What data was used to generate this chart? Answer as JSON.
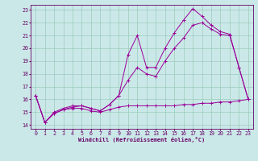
{
  "xlabel": "Windchill (Refroidissement éolien,°C)",
  "bg_color": "#cbe8e8",
  "line_color": "#990099",
  "grid_color": "#99ccbb",
  "xlim_min": -0.5,
  "xlim_max": 23.5,
  "ylim_min": 13.7,
  "ylim_max": 23.4,
  "xticks": [
    0,
    1,
    2,
    3,
    4,
    5,
    6,
    7,
    8,
    9,
    10,
    11,
    12,
    13,
    14,
    15,
    16,
    17,
    18,
    19,
    20,
    21,
    22,
    23
  ],
  "yticks": [
    14,
    15,
    16,
    17,
    18,
    19,
    20,
    21,
    22,
    23
  ],
  "line1_x": [
    0,
    1,
    2,
    3,
    4,
    5,
    6,
    7,
    8,
    9,
    10,
    11,
    12,
    13,
    14,
    15,
    16,
    17,
    18,
    19,
    20,
    21,
    22,
    23
  ],
  "line1_y": [
    16.3,
    14.2,
    14.9,
    15.2,
    15.3,
    15.3,
    15.1,
    15.0,
    15.2,
    15.4,
    15.5,
    15.5,
    15.5,
    15.5,
    15.5,
    15.5,
    15.6,
    15.6,
    15.7,
    15.7,
    15.8,
    15.8,
    15.9,
    16.0
  ],
  "line2_x": [
    0,
    1,
    2,
    3,
    4,
    5,
    6,
    7,
    8,
    9,
    10,
    11,
    12,
    13,
    14,
    15,
    16,
    17,
    18,
    19,
    20,
    21,
    22,
    23
  ],
  "line2_y": [
    16.3,
    14.2,
    15.0,
    15.3,
    15.5,
    15.5,
    15.3,
    15.1,
    15.6,
    16.3,
    17.5,
    18.5,
    18.0,
    17.8,
    19.0,
    20.0,
    20.8,
    21.8,
    22.0,
    21.5,
    21.1,
    21.0,
    18.5,
    16.0
  ],
  "line3_x": [
    0,
    1,
    2,
    3,
    4,
    5,
    6,
    7,
    8,
    9,
    10,
    11,
    12,
    13,
    14,
    15,
    16,
    17,
    18,
    19,
    20,
    21,
    22,
    23
  ],
  "line3_y": [
    16.3,
    14.2,
    14.9,
    15.2,
    15.4,
    15.5,
    15.3,
    15.1,
    15.6,
    16.3,
    19.5,
    21.0,
    18.5,
    18.5,
    20.0,
    21.2,
    22.2,
    23.1,
    22.5,
    21.8,
    21.3,
    21.1,
    18.5,
    16.0
  ]
}
